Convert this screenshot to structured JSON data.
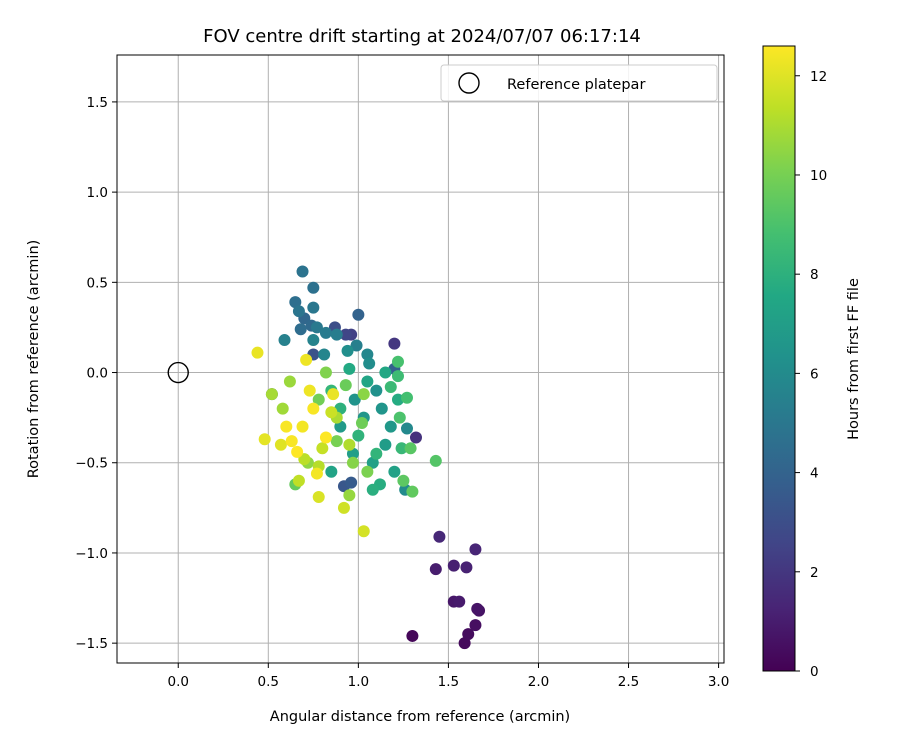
{
  "chart_data": {
    "type": "scatter",
    "title": "FOV centre drift starting at 2024/07/07 06:17:14",
    "xlabel": "Angular distance from reference (arcmin)",
    "ylabel": "Rotation from reference (arcmin)",
    "xlim": [
      -0.34,
      3.03
    ],
    "ylim": [
      -1.61,
      1.76
    ],
    "xticks": [
      0.0,
      0.5,
      1.0,
      1.5,
      2.0,
      2.5,
      3.0
    ],
    "xtick_labels": [
      "0.0",
      "0.5",
      "1.0",
      "1.5",
      "2.0",
      "2.5",
      "3.0"
    ],
    "yticks": [
      1.5,
      1.0,
      0.5,
      0.0,
      -0.5,
      -1.0,
      -1.5
    ],
    "ytick_labels": [
      "1.5",
      "1.0",
      "0.5",
      "0.0",
      "−0.5",
      "−1.0",
      "−1.5"
    ],
    "grid": true,
    "legend": {
      "placement": "top-right",
      "entries": [
        "Reference platepar"
      ]
    },
    "reference_point": {
      "x": 0.0,
      "y": 0.0
    },
    "colorbar": {
      "label": "Hours from first FF file",
      "colormap": "viridis",
      "range": [
        0,
        12.6
      ],
      "ticks": [
        0,
        2,
        4,
        6,
        8,
        10,
        12
      ],
      "tick_labels": [
        "0",
        "2",
        "4",
        "6",
        "8",
        "10",
        "12"
      ]
    },
    "points": [
      {
        "x": 1.3,
        "y": -1.46,
        "h": 0.2
      },
      {
        "x": 1.59,
        "y": -1.5,
        "h": 0.3
      },
      {
        "x": 1.61,
        "y": -1.45,
        "h": 0.4
      },
      {
        "x": 1.65,
        "y": -1.4,
        "h": 0.5
      },
      {
        "x": 1.67,
        "y": -1.32,
        "h": 0.6
      },
      {
        "x": 1.66,
        "y": -1.31,
        "h": 0.7
      },
      {
        "x": 1.53,
        "y": -1.27,
        "h": 0.8
      },
      {
        "x": 1.56,
        "y": -1.27,
        "h": 0.9
      },
      {
        "x": 1.43,
        "y": -1.09,
        "h": 1.0
      },
      {
        "x": 1.53,
        "y": -1.07,
        "h": 1.1
      },
      {
        "x": 1.6,
        "y": -1.08,
        "h": 1.2
      },
      {
        "x": 1.65,
        "y": -0.98,
        "h": 1.3
      },
      {
        "x": 1.45,
        "y": -0.91,
        "h": 1.4
      },
      {
        "x": 1.32,
        "y": -0.36,
        "h": 1.8
      },
      {
        "x": 1.2,
        "y": 0.16,
        "h": 2.0
      },
      {
        "x": 0.96,
        "y": 0.21,
        "h": 2.4
      },
      {
        "x": 0.93,
        "y": 0.21,
        "h": 2.6
      },
      {
        "x": 0.87,
        "y": 0.25,
        "h": 3.0
      },
      {
        "x": 0.75,
        "y": 0.1,
        "h": 3.2
      },
      {
        "x": 0.92,
        "y": -0.63,
        "h": 3.4
      },
      {
        "x": 0.96,
        "y": -0.61,
        "h": 3.6
      },
      {
        "x": 0.52,
        "y": -0.12,
        "h": 3.8
      },
      {
        "x": 1.2,
        "y": 0.02,
        "h": 3.9
      },
      {
        "x": 1.0,
        "y": 0.32,
        "h": 4.0
      },
      {
        "x": 0.7,
        "y": 0.3,
        "h": 4.2
      },
      {
        "x": 0.74,
        "y": 0.26,
        "h": 4.3
      },
      {
        "x": 0.68,
        "y": 0.24,
        "h": 4.5
      },
      {
        "x": 0.65,
        "y": 0.39,
        "h": 4.6
      },
      {
        "x": 0.75,
        "y": 0.47,
        "h": 4.7
      },
      {
        "x": 0.69,
        "y": 0.56,
        "h": 4.8
      },
      {
        "x": 0.67,
        "y": 0.34,
        "h": 4.9
      },
      {
        "x": 0.75,
        "y": 0.36,
        "h": 5.0
      },
      {
        "x": 0.77,
        "y": 0.25,
        "h": 5.1
      },
      {
        "x": 0.82,
        "y": 0.22,
        "h": 5.2
      },
      {
        "x": 0.88,
        "y": 0.21,
        "h": 5.3
      },
      {
        "x": 0.99,
        "y": 0.15,
        "h": 5.4
      },
      {
        "x": 0.59,
        "y": 0.18,
        "h": 5.5
      },
      {
        "x": 0.75,
        "y": 0.18,
        "h": 5.6
      },
      {
        "x": 0.81,
        "y": 0.1,
        "h": 5.7
      },
      {
        "x": 1.05,
        "y": 0.1,
        "h": 5.8
      },
      {
        "x": 1.27,
        "y": -0.31,
        "h": 5.9
      },
      {
        "x": 1.26,
        "y": -0.65,
        "h": 6.0
      },
      {
        "x": 1.06,
        "y": 0.05,
        "h": 6.1
      },
      {
        "x": 0.94,
        "y": 0.12,
        "h": 6.2
      },
      {
        "x": 1.1,
        "y": -0.1,
        "h": 6.3
      },
      {
        "x": 0.98,
        "y": -0.15,
        "h": 6.4
      },
      {
        "x": 1.13,
        "y": -0.2,
        "h": 6.5
      },
      {
        "x": 1.03,
        "y": -0.25,
        "h": 6.6
      },
      {
        "x": 1.18,
        "y": -0.3,
        "h": 6.7
      },
      {
        "x": 0.9,
        "y": -0.3,
        "h": 6.8
      },
      {
        "x": 1.15,
        "y": -0.4,
        "h": 6.9
      },
      {
        "x": 0.97,
        "y": -0.45,
        "h": 7.0
      },
      {
        "x": 1.08,
        "y": -0.5,
        "h": 7.1
      },
      {
        "x": 1.2,
        "y": -0.55,
        "h": 7.2
      },
      {
        "x": 0.85,
        "y": -0.55,
        "h": 7.3
      },
      {
        "x": 1.05,
        "y": -0.05,
        "h": 7.4
      },
      {
        "x": 1.15,
        "y": 0.0,
        "h": 7.5
      },
      {
        "x": 0.95,
        "y": 0.02,
        "h": 7.6
      },
      {
        "x": 1.22,
        "y": -0.15,
        "h": 7.7
      },
      {
        "x": 1.12,
        "y": -0.62,
        "h": 7.8
      },
      {
        "x": 1.08,
        "y": -0.65,
        "h": 7.9
      },
      {
        "x": 0.9,
        "y": -0.2,
        "h": 8.0
      },
      {
        "x": 1.0,
        "y": -0.35,
        "h": 8.1
      },
      {
        "x": 1.1,
        "y": -0.45,
        "h": 8.2
      },
      {
        "x": 0.85,
        "y": -0.1,
        "h": 8.3
      },
      {
        "x": 1.24,
        "y": -0.42,
        "h": 8.4
      },
      {
        "x": 1.18,
        "y": -0.08,
        "h": 8.5
      },
      {
        "x": 1.22,
        "y": -0.02,
        "h": 8.6
      },
      {
        "x": 1.27,
        "y": -0.14,
        "h": 8.8
      },
      {
        "x": 1.22,
        "y": 0.06,
        "h": 8.9
      },
      {
        "x": 1.23,
        "y": -0.25,
        "h": 9.0
      },
      {
        "x": 1.43,
        "y": -0.49,
        "h": 9.2
      },
      {
        "x": 1.29,
        "y": -0.42,
        "h": 9.3
      },
      {
        "x": 1.25,
        "y": -0.6,
        "h": 9.4
      },
      {
        "x": 1.3,
        "y": -0.66,
        "h": 9.5
      },
      {
        "x": 0.65,
        "y": -0.62,
        "h": 9.6
      },
      {
        "x": 0.93,
        "y": -0.07,
        "h": 9.7
      },
      {
        "x": 1.02,
        "y": -0.28,
        "h": 9.8
      },
      {
        "x": 0.78,
        "y": -0.15,
        "h": 9.9
      },
      {
        "x": 0.88,
        "y": -0.38,
        "h": 10.0
      },
      {
        "x": 1.05,
        "y": -0.55,
        "h": 10.1
      },
      {
        "x": 0.82,
        "y": 0.0,
        "h": 10.2
      },
      {
        "x": 0.97,
        "y": -0.5,
        "h": 10.3
      },
      {
        "x": 1.03,
        "y": -0.12,
        "h": 10.4
      },
      {
        "x": 0.72,
        "y": -0.5,
        "h": 10.5
      },
      {
        "x": 0.95,
        "y": -0.68,
        "h": 10.6
      },
      {
        "x": 0.62,
        "y": -0.05,
        "h": 10.7
      },
      {
        "x": 0.58,
        "y": -0.2,
        "h": 10.8
      },
      {
        "x": 0.52,
        "y": -0.12,
        "h": 10.9
      },
      {
        "x": 0.88,
        "y": -0.25,
        "h": 11.0
      },
      {
        "x": 0.95,
        "y": -0.4,
        "h": 11.1
      },
      {
        "x": 0.78,
        "y": -0.52,
        "h": 11.2
      },
      {
        "x": 0.7,
        "y": -0.48,
        "h": 11.3
      },
      {
        "x": 0.67,
        "y": -0.6,
        "h": 11.4
      },
      {
        "x": 0.8,
        "y": -0.42,
        "h": 11.5
      },
      {
        "x": 0.85,
        "y": -0.22,
        "h": 11.6
      },
      {
        "x": 0.92,
        "y": -0.75,
        "h": 11.7
      },
      {
        "x": 1.03,
        "y": -0.88,
        "h": 11.8
      },
      {
        "x": 0.78,
        "y": -0.69,
        "h": 11.9
      },
      {
        "x": 0.57,
        "y": -0.4,
        "h": 12.0
      },
      {
        "x": 0.48,
        "y": -0.37,
        "h": 12.1
      },
      {
        "x": 0.44,
        "y": 0.11,
        "h": 12.2
      },
      {
        "x": 0.73,
        "y": -0.1,
        "h": 12.3
      },
      {
        "x": 0.69,
        "y": -0.3,
        "h": 12.4
      },
      {
        "x": 0.63,
        "y": -0.38,
        "h": 12.5
      },
      {
        "x": 0.75,
        "y": -0.2,
        "h": 12.5
      },
      {
        "x": 0.82,
        "y": -0.36,
        "h": 12.6
      },
      {
        "x": 0.66,
        "y": -0.44,
        "h": 12.6
      },
      {
        "x": 0.6,
        "y": -0.3,
        "h": 12.5
      },
      {
        "x": 0.77,
        "y": -0.56,
        "h": 12.4
      },
      {
        "x": 0.71,
        "y": 0.07,
        "h": 12.3
      },
      {
        "x": 0.86,
        "y": -0.12,
        "h": 12.2
      }
    ]
  }
}
